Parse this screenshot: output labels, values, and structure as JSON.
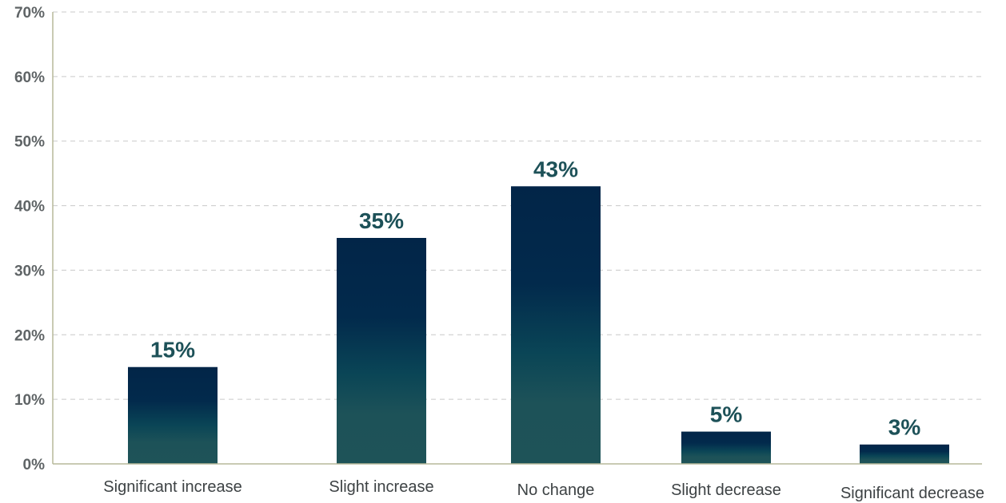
{
  "chart_data": {
    "type": "bar",
    "categories": [
      "Significant increase",
      "Slight increase",
      "No change",
      "Slight decrease",
      "Significant decrease"
    ],
    "values": [
      15,
      35,
      43,
      5,
      3
    ],
    "data_labels": [
      "15%",
      "35%",
      "43%",
      "5%",
      "3%"
    ],
    "yticks": [
      "0%",
      "10%",
      "20%",
      "30%",
      "40%",
      "50%",
      "60%",
      "70%"
    ],
    "ylim": [
      0,
      70
    ],
    "grid": true,
    "legend": "none",
    "colors": {
      "bar_top": "#022548",
      "bar_mid": "#0a4556",
      "bar_bottom": "#1e5358",
      "label": "#1d5158",
      "grid": "#c9c9c9",
      "axis": "#b7b99a"
    }
  }
}
